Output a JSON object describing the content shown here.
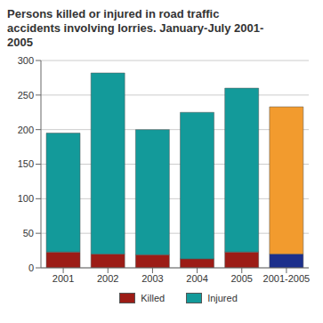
{
  "chart_data": {
    "type": "bar",
    "title": "Persons killed or injured in road traffic accidents involving lorries. January-July 2001-2005",
    "categories": [
      "2001",
      "2002",
      "2003",
      "2004",
      "2005",
      "2001-2005"
    ],
    "series": [
      {
        "name": "Killed",
        "color": "#9c1c16",
        "colors": [
          "#9c1c16",
          "#9c1c16",
          "#9c1c16",
          "#9c1c16",
          "#9c1c16",
          "#1c2f8c"
        ],
        "values": [
          23,
          20,
          19,
          13,
          23,
          20
        ]
      },
      {
        "name": "Injured",
        "color": "#139a9a",
        "colors": [
          "#139a9a",
          "#139a9a",
          "#139a9a",
          "#139a9a",
          "#139a9a",
          "#f29b2e"
        ],
        "values": [
          172,
          262,
          181,
          212,
          237,
          213
        ]
      }
    ],
    "stacked": true,
    "ylim": [
      0,
      300
    ],
    "yticks": [
      0,
      50,
      100,
      150,
      200,
      250,
      300
    ],
    "grid": true
  }
}
